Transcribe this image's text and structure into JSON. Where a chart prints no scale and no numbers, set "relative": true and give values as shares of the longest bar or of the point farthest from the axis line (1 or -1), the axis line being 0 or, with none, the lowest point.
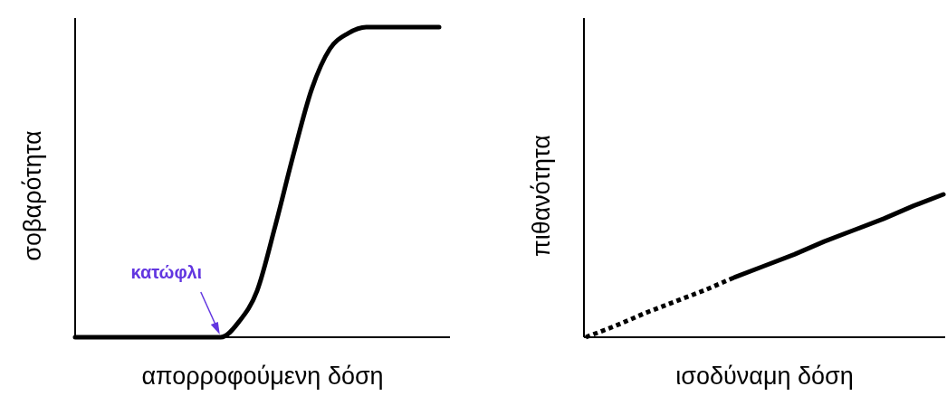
{
  "chart_data": [
    {
      "type": "line",
      "relative": true,
      "xlabel": "απορροφούμενη δόση",
      "ylabel": "σοβαρότητα",
      "annotations": [
        "κατώφλι"
      ],
      "categories": [
        null,
        null,
        null,
        null,
        null,
        null,
        null,
        null,
        null,
        null,
        null,
        null,
        null,
        null,
        null,
        null,
        null,
        null,
        null,
        null,
        null
      ],
      "series": [
        {
          "color": "#000000",
          "line_style": "solid",
          "values": [
            0,
            0,
            0,
            0,
            0,
            0,
            0,
            0,
            0,
            0.05,
            0.15,
            0.36,
            0.59,
            0.8,
            0.93,
            0.98,
            1,
            1,
            1,
            1,
            1
          ]
        }
      ]
    },
    {
      "type": "line",
      "relative": true,
      "xlabel": "ισοδύναμη δόση",
      "ylabel": "πιθανότητα",
      "categories": [
        null,
        null,
        null,
        null,
        null,
        null,
        null,
        null,
        null,
        null,
        null,
        null,
        null
      ],
      "series": [
        {
          "color": "#000000",
          "line_style": "dotted",
          "values": [
            0,
            0.08,
            0.17,
            0.25,
            0.33,
            0.42,
            null,
            null,
            null,
            null,
            null,
            null,
            null
          ]
        },
        {
          "color": "#000000",
          "line_style": "solid",
          "values": [
            null,
            null,
            null,
            null,
            null,
            0.42,
            0.5,
            0.58,
            0.67,
            0.75,
            0.83,
            0.92,
            1
          ]
        }
      ]
    }
  ]
}
